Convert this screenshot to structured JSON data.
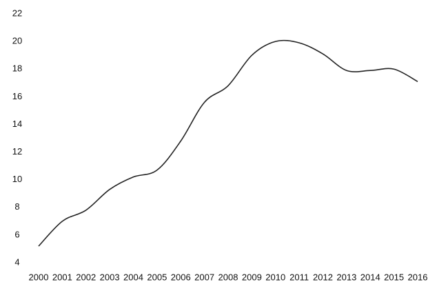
{
  "chart_data": {
    "type": "line",
    "categories": [
      "2000",
      "2001",
      "2002",
      "2003",
      "2004",
      "2005",
      "2006",
      "2007",
      "2008",
      "2009",
      "2010",
      "2011",
      "2012",
      "2013",
      "2014",
      "2015",
      "2016"
    ],
    "values": [
      5.2,
      7.0,
      7.8,
      9.3,
      10.2,
      10.7,
      12.8,
      15.6,
      16.8,
      19.0,
      20.0,
      19.9,
      19.1,
      17.9,
      17.9,
      18.0,
      17.1
    ],
    "color": "#222222",
    "ylim": [
      4,
      22
    ],
    "yticks": [
      4,
      6,
      8,
      10,
      12,
      14,
      16,
      18,
      20,
      22
    ],
    "grid": false
  }
}
